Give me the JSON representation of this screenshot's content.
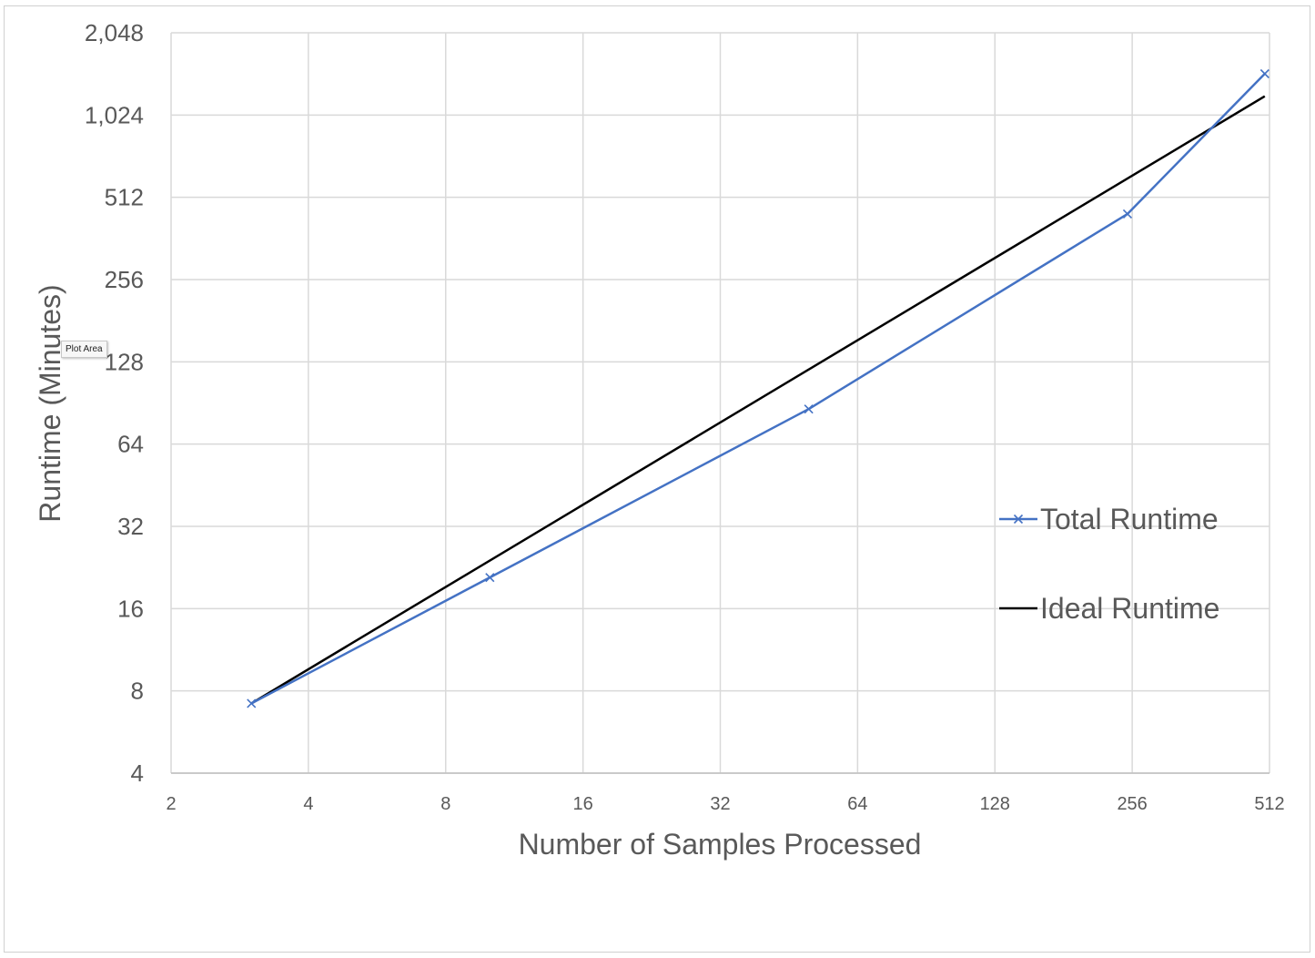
{
  "tooltip": {
    "label": "Plot Area"
  },
  "chart_data": {
    "type": "line",
    "title": "",
    "xlabel": "Number of Samples Processed",
    "ylabel": "Runtime (Minutes)",
    "x_scale": "log2",
    "y_scale": "log2",
    "xlim": [
      2,
      512
    ],
    "ylim": [
      4,
      2048
    ],
    "x_ticks": [
      "2",
      "4",
      "8",
      "16",
      "32",
      "64",
      "128",
      "256",
      "512"
    ],
    "y_ticks": [
      "4",
      "8",
      "16",
      "32",
      "64",
      "128",
      "256",
      "512",
      "1,024",
      "2,048"
    ],
    "grid": true,
    "legend_position": "right",
    "series": [
      {
        "name": "Total Runtime",
        "color": "#4472C4",
        "marker": "x",
        "x": [
          3,
          10,
          50,
          250,
          500
        ],
        "y": [
          7.2,
          20.8,
          86,
          445,
          1450
        ]
      },
      {
        "name": "Ideal Runtime",
        "color": "#000000",
        "marker": "none",
        "x": [
          3,
          500
        ],
        "y": [
          7.2,
          1200
        ]
      }
    ]
  }
}
